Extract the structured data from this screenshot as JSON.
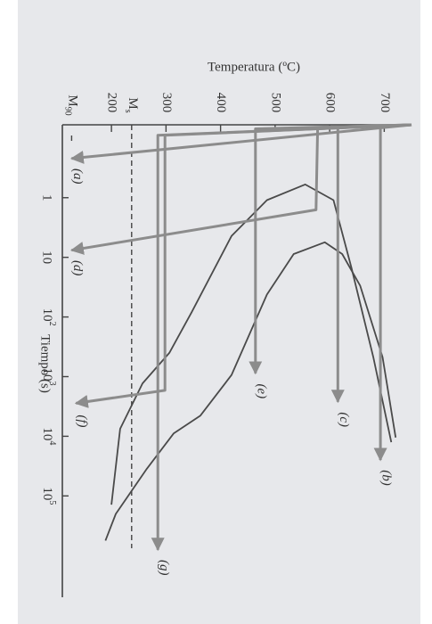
{
  "chart_data": {
    "type": "line",
    "y_label": "Temperatura (ºC)",
    "x_label": "Tiempo (s)",
    "xscale": "log",
    "xlim": [
      0.06,
      5000000
    ],
    "ylim": [
      110,
      750
    ],
    "xticks": [
      1,
      10,
      {
        "value": 100,
        "label": "10",
        "exponent": "2"
      },
      {
        "value": 1000,
        "label": "10",
        "exponent": "3"
      },
      {
        "value": 10000,
        "label": "10",
        "exponent": "4"
      },
      {
        "value": 100000,
        "label": "10",
        "exponent": "5"
      }
    ],
    "yticks": [
      200,
      300,
      400,
      500,
      600,
      700
    ],
    "reference_lines": [
      {
        "label": "M",
        "subscript": "s",
        "value": 237,
        "line": "full"
      },
      {
        "label": "M",
        "subscript": "90",
        "value": 127,
        "line": "short"
      }
    ],
    "curves": [
      {
        "color": "#4a4a4a",
        "x": [
          12600,
          470,
          15,
          1.1,
          0.6,
          1.1,
          4.4,
          83,
          400,
          1300,
          7500,
          140000
        ],
        "values": [
          713,
          680,
          640,
          607,
          555,
          485,
          420,
          347,
          306,
          257,
          216,
          200
        ]
      },
      {
        "color": "#4a4a4a",
        "x": [
          10500,
          470,
          30,
          8.8,
          5.6,
          8.8,
          42,
          940,
          4500,
          9000,
          35000,
          200000,
          560000
        ],
        "values": [
          721,
          697,
          656,
          623,
          591,
          534,
          485,
          420,
          363,
          314,
          265,
          208,
          189
        ]
      }
    ],
    "series": [
      {
        "name": "(a)",
        "color": "#8c8c8c",
        "x": [
          0.06,
          0.22
        ],
        "values": [
          750,
          127
        ]
      },
      {
        "name": "(d)",
        "color": "#8c8c8c",
        "x": [
          0.06,
          0.07,
          1.6,
          7.6
        ],
        "values": [
          750,
          578,
          575,
          127
        ]
      },
      {
        "name": "(f)",
        "color": "#8c8c8c",
        "x": [
          0.06,
          0.09,
          1700,
          2800
        ],
        "values": [
          750,
          298,
          298,
          135
        ]
      },
      {
        "name": "(g)",
        "color": "#8c8c8c",
        "x": [
          0.06,
          0.09,
          800000
        ],
        "values": [
          750,
          285,
          285
        ]
      },
      {
        "name": "(e)",
        "color": "#8c8c8c",
        "x": [
          0.06,
          0.07,
          880
        ],
        "values": [
          750,
          464,
          464
        ]
      },
      {
        "name": "(c)",
        "color": "#8c8c8c",
        "x": [
          0.06,
          0.065,
          2640
        ],
        "values": [
          750,
          615,
          615
        ]
      },
      {
        "name": "(b)",
        "color": "#8c8c8c",
        "x": [
          0.06,
          0.065,
          25000
        ],
        "values": [
          750,
          693,
          693
        ]
      }
    ]
  }
}
